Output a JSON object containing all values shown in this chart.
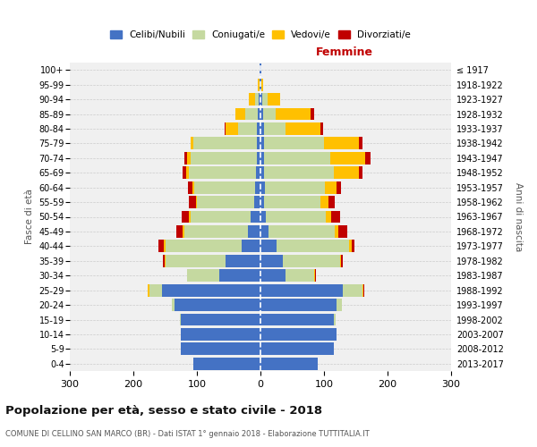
{
  "age_groups": [
    "0-4",
    "5-9",
    "10-14",
    "15-19",
    "20-24",
    "25-29",
    "30-34",
    "35-39",
    "40-44",
    "45-49",
    "50-54",
    "55-59",
    "60-64",
    "65-69",
    "70-74",
    "75-79",
    "80-84",
    "85-89",
    "90-94",
    "95-99",
    "100+"
  ],
  "birth_years": [
    "2013-2017",
    "2008-2012",
    "2003-2007",
    "1998-2002",
    "1993-1997",
    "1988-1992",
    "1983-1987",
    "1978-1982",
    "1973-1977",
    "1968-1972",
    "1963-1967",
    "1958-1962",
    "1953-1957",
    "1948-1952",
    "1943-1947",
    "1938-1942",
    "1933-1937",
    "1928-1932",
    "1923-1927",
    "1918-1922",
    "≤ 1917"
  ],
  "male": {
    "celibi": [
      105,
      125,
      125,
      125,
      135,
      155,
      65,
      55,
      30,
      20,
      15,
      10,
      9,
      7,
      5,
      5,
      5,
      4,
      3,
      1,
      1
    ],
    "coniugati": [
      0,
      0,
      0,
      2,
      5,
      20,
      50,
      95,
      120,
      100,
      95,
      90,
      95,
      105,
      105,
      100,
      30,
      20,
      6,
      1,
      0
    ],
    "vedovi": [
      0,
      0,
      0,
      0,
      0,
      2,
      0,
      1,
      2,
      3,
      2,
      2,
      3,
      5,
      5,
      5,
      20,
      15,
      10,
      2,
      0
    ],
    "divorziati": [
      0,
      0,
      0,
      0,
      0,
      0,
      1,
      3,
      8,
      10,
      12,
      10,
      7,
      5,
      5,
      0,
      2,
      0,
      0,
      0,
      0
    ]
  },
  "female": {
    "nubili": [
      90,
      115,
      120,
      115,
      120,
      130,
      40,
      35,
      25,
      12,
      8,
      5,
      7,
      5,
      5,
      5,
      5,
      4,
      3,
      1,
      1
    ],
    "coniugate": [
      0,
      0,
      0,
      3,
      8,
      30,
      45,
      90,
      115,
      105,
      95,
      90,
      95,
      110,
      105,
      95,
      35,
      20,
      8,
      1,
      0
    ],
    "vedove": [
      0,
      0,
      0,
      0,
      0,
      2,
      1,
      2,
      3,
      5,
      8,
      12,
      18,
      40,
      55,
      55,
      55,
      55,
      20,
      2,
      1
    ],
    "divorziate": [
      0,
      0,
      0,
      0,
      0,
      2,
      2,
      3,
      5,
      15,
      15,
      10,
      7,
      5,
      8,
      5,
      3,
      5,
      0,
      0,
      0
    ]
  },
  "colors": {
    "celibi": "#4472c4",
    "coniugati": "#c5d9a0",
    "vedovi": "#ffc000",
    "divorziati": "#c00000"
  },
  "xlim": 300,
  "title": "Popolazione per età, sesso e stato civile - 2018",
  "subtitle": "COMUNE DI CELLINO SAN MARCO (BR) - Dati ISTAT 1° gennaio 2018 - Elaborazione TUTTITALIA.IT",
  "ylabel": "Fasce di età",
  "right_label": "Anni di nascita",
  "xlabel_right": "Femmine"
}
